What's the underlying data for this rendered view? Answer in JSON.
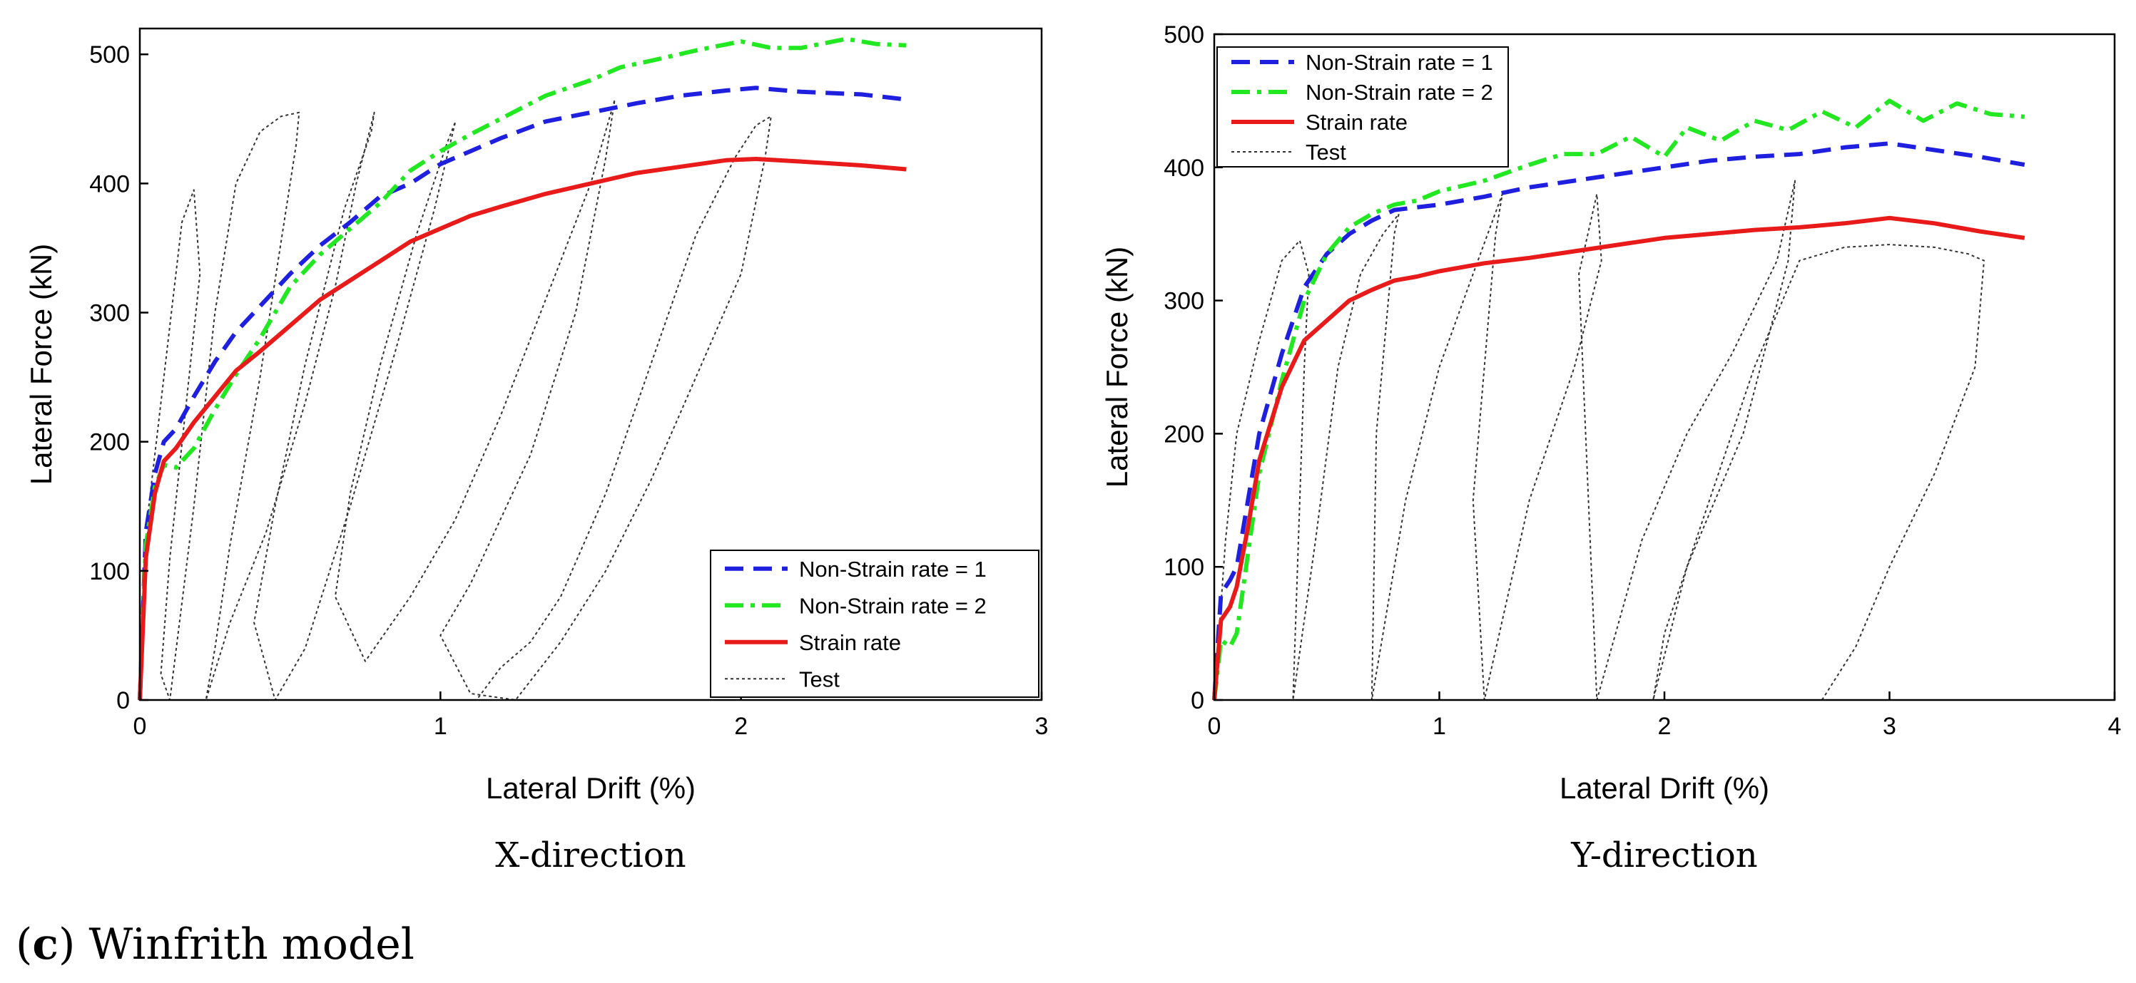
{
  "figure_caption": {
    "prefix": "(",
    "letter": "c",
    "rest": ") Winfrith model"
  },
  "chart_data": [
    {
      "type": "line",
      "panel_caption": "X-direction",
      "xlabel": "Lateral Drift (%)",
      "ylabel": "Lateral Force (kN)",
      "xlim": [
        0,
        3
      ],
      "ylim": [
        0,
        520
      ],
      "xticks": [
        0,
        1,
        2,
        3
      ],
      "yticks": [
        0,
        100,
        200,
        300,
        400,
        500
      ],
      "grid": false,
      "legend_position": "bottom-right",
      "series": [
        {
          "name": "Non-Strain rate = 1",
          "style": "dashed",
          "color": "#1f1fe0",
          "x": [
            0,
            0.02,
            0.05,
            0.08,
            0.12,
            0.18,
            0.25,
            0.32,
            0.4,
            0.5,
            0.6,
            0.7,
            0.8,
            0.9,
            1.0,
            1.1,
            1.2,
            1.35,
            1.5,
            1.65,
            1.8,
            1.95,
            2.05,
            2.2,
            2.4,
            2.55
          ],
          "y": [
            0,
            130,
            175,
            200,
            210,
            235,
            262,
            285,
            305,
            330,
            352,
            370,
            390,
            400,
            415,
            425,
            435,
            448,
            455,
            462,
            468,
            472,
            474,
            471,
            469,
            465
          ]
        },
        {
          "name": "Non-Strain rate = 2",
          "style": "dashdot",
          "color": "#22e822",
          "x": [
            0,
            0.02,
            0.05,
            0.08,
            0.12,
            0.18,
            0.25,
            0.32,
            0.4,
            0.5,
            0.6,
            0.7,
            0.8,
            0.9,
            1.0,
            1.1,
            1.2,
            1.35,
            1.5,
            1.6,
            1.7,
            1.85,
            2.0,
            2.1,
            2.2,
            2.35,
            2.45,
            2.55
          ],
          "y": [
            0,
            120,
            165,
            182,
            180,
            195,
            225,
            252,
            280,
            320,
            345,
            365,
            385,
            410,
            425,
            438,
            450,
            468,
            480,
            490,
            495,
            503,
            510,
            505,
            505,
            512,
            508,
            507
          ]
        },
        {
          "name": "Strain rate",
          "style": "solid",
          "color": "#e81a1a",
          "x": [
            0,
            0.02,
            0.05,
            0.08,
            0.12,
            0.18,
            0.25,
            0.32,
            0.4,
            0.5,
            0.6,
            0.7,
            0.8,
            0.9,
            1.0,
            1.1,
            1.2,
            1.35,
            1.5,
            1.65,
            1.8,
            1.95,
            2.05,
            2.2,
            2.4,
            2.55
          ],
          "y": [
            0,
            110,
            160,
            185,
            195,
            215,
            235,
            255,
            270,
            290,
            310,
            325,
            340,
            355,
            365,
            375,
            382,
            392,
            400,
            408,
            413,
            418,
            419,
            417,
            414,
            411
          ]
        },
        {
          "name": "Test",
          "style": "dotted",
          "color": "#333333",
          "x": [
            0,
            0.03,
            0.08,
            0.14,
            0.18,
            0.2,
            0.15,
            0.1,
            0.07,
            0.1,
            0.18,
            0.25,
            0.32,
            0.4,
            0.47,
            0.53,
            0.52,
            0.4,
            0.3,
            0.25,
            0.22,
            0.3,
            0.42,
            0.55,
            0.65,
            0.72,
            0.78,
            0.77,
            0.68,
            0.55,
            0.45,
            0.38,
            0.45,
            0.55,
            0.7,
            0.85,
            0.98,
            1.05,
            1.02,
            0.92,
            0.8,
            0.7,
            0.65,
            0.75,
            0.9,
            1.05,
            1.2,
            1.35,
            1.5,
            1.58,
            1.55,
            1.45,
            1.3,
            1.1,
            1.0,
            1.1,
            1.25,
            1.4,
            1.55,
            1.7,
            1.85,
            2.0,
            2.08,
            2.1,
            2.05,
            1.98,
            1.85,
            1.7,
            1.55,
            1.4,
            1.3,
            1.2,
            1.12
          ],
          "y": [
            0,
            150,
            250,
            370,
            395,
            330,
            220,
            110,
            20,
            0,
            150,
            300,
            400,
            440,
            452,
            455,
            430,
            250,
            120,
            40,
            0,
            60,
            130,
            230,
            320,
            400,
            455,
            440,
            380,
            260,
            150,
            60,
            0,
            40,
            150,
            270,
            380,
            448,
            430,
            360,
            260,
            160,
            80,
            30,
            80,
            140,
            220,
            310,
            400,
            465,
            420,
            300,
            190,
            90,
            50,
            5,
            0,
            45,
            100,
            170,
            250,
            330,
            420,
            452,
            445,
            420,
            360,
            260,
            160,
            80,
            45,
            25,
            0
          ]
        }
      ]
    },
    {
      "type": "line",
      "panel_caption": "Y-direction",
      "xlabel": "Lateral Drift (%)",
      "ylabel": "Lateral Force (kN)",
      "xlim": [
        0,
        4
      ],
      "ylim": [
        0,
        500
      ],
      "xticks": [
        0,
        1,
        2,
        3,
        4
      ],
      "yticks": [
        0,
        100,
        200,
        300,
        400,
        500
      ],
      "grid": false,
      "legend_position": "top-left",
      "series": [
        {
          "name": "Non-Strain rate = 1",
          "style": "dashed",
          "color": "#1f1fe0",
          "x": [
            0,
            0.03,
            0.07,
            0.1,
            0.15,
            0.2,
            0.3,
            0.4,
            0.5,
            0.6,
            0.7,
            0.8,
            0.9,
            1.0,
            1.2,
            1.4,
            1.6,
            1.8,
            2.0,
            2.2,
            2.4,
            2.6,
            2.8,
            3.0,
            3.2,
            3.4,
            3.6
          ],
          "y": [
            0,
            80,
            90,
            100,
            150,
            200,
            260,
            310,
            335,
            350,
            360,
            368,
            370,
            372,
            378,
            385,
            390,
            395,
            400,
            405,
            408,
            410,
            415,
            418,
            413,
            408,
            402
          ]
        },
        {
          "name": "Non-Strain rate = 2",
          "style": "dashdot",
          "color": "#22e822",
          "x": [
            0,
            0.03,
            0.07,
            0.1,
            0.15,
            0.2,
            0.3,
            0.4,
            0.5,
            0.6,
            0.7,
            0.8,
            0.9,
            1.0,
            1.2,
            1.4,
            1.55,
            1.7,
            1.85,
            2.0,
            2.1,
            2.25,
            2.4,
            2.55,
            2.7,
            2.85,
            3.0,
            3.15,
            3.3,
            3.45,
            3.6
          ],
          "y": [
            0,
            45,
            40,
            50,
            110,
            170,
            240,
            300,
            335,
            355,
            365,
            372,
            375,
            382,
            390,
            402,
            410,
            410,
            423,
            408,
            430,
            420,
            435,
            428,
            442,
            430,
            450,
            435,
            448,
            440,
            438
          ]
        },
        {
          "name": "Strain rate",
          "style": "solid",
          "color": "#e81a1a",
          "x": [
            0,
            0.03,
            0.07,
            0.1,
            0.15,
            0.2,
            0.3,
            0.4,
            0.5,
            0.6,
            0.7,
            0.8,
            0.9,
            1.0,
            1.2,
            1.4,
            1.6,
            1.8,
            2.0,
            2.2,
            2.4,
            2.6,
            2.8,
            3.0,
            3.2,
            3.4,
            3.6
          ],
          "y": [
            0,
            60,
            70,
            85,
            130,
            180,
            235,
            270,
            285,
            300,
            308,
            315,
            318,
            322,
            328,
            332,
            337,
            342,
            347,
            350,
            353,
            355,
            358,
            362,
            358,
            352,
            347
          ]
        },
        {
          "name": "Test",
          "style": "dotted",
          "color": "#333333",
          "x": [
            0,
            0.05,
            0.1,
            0.2,
            0.3,
            0.38,
            0.42,
            0.4,
            0.35,
            0.45,
            0.55,
            0.65,
            0.75,
            0.82,
            0.8,
            0.72,
            0.7,
            0.85,
            1.0,
            1.15,
            1.28,
            1.25,
            1.15,
            1.2,
            1.4,
            1.6,
            1.72,
            1.7,
            1.62,
            1.7,
            1.9,
            2.1,
            2.3,
            2.5,
            2.58,
            2.55,
            2.35,
            2.1,
            1.95,
            2.0,
            2.2,
            2.4,
            2.6,
            2.8,
            3.0,
            3.2,
            3.35,
            3.42,
            3.38,
            3.2,
            3.0,
            2.85,
            2.7
          ],
          "y": [
            0,
            120,
            200,
            270,
            330,
            345,
            320,
            250,
            0,
            120,
            250,
            320,
            350,
            365,
            350,
            200,
            0,
            150,
            250,
            320,
            380,
            350,
            150,
            0,
            150,
            250,
            330,
            380,
            320,
            0,
            120,
            200,
            260,
            330,
            390,
            330,
            200,
            100,
            0,
            50,
            150,
            250,
            330,
            340,
            342,
            340,
            335,
            330,
            250,
            170,
            100,
            40,
            0
          ]
        }
      ]
    }
  ]
}
